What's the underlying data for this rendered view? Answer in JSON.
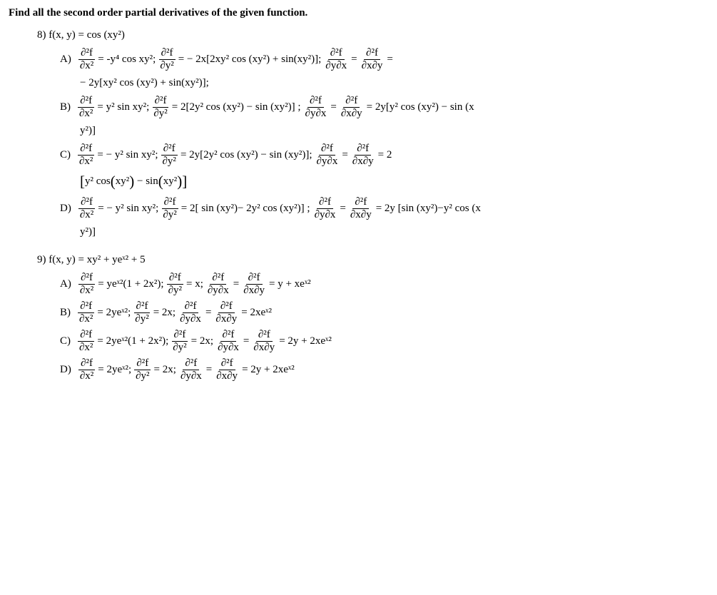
{
  "header": "Find all the second order partial derivatives of the given function.",
  "q8": {
    "number": "8)",
    "function": "f(x, y) = cos (xy²)",
    "A": {
      "label": "A)",
      "p1_rhs": " = -y⁴ cos xy²; ",
      "p2_rhs": " = − 2x[2xy² cos (xy²) + sin(xy²)]; ",
      "cont1": "− 2y[xy² cos (xy²) + sin(xy²)];",
      "mixed_eq": " = "
    },
    "B": {
      "label": "B)",
      "p1_rhs": " = y² sin xy²; ",
      "p2_rhs": " = 2[2y² cos (xy²) − sin (xy²)] ; ",
      "mixed_rhs": " = 2y[y² cos (xy²) − sin (x",
      "cont1": "y²)]"
    },
    "C": {
      "label": "C)",
      "p1_rhs": " = − y² sin xy²; ",
      "p2_rhs": " = 2y[2y² cos (xy²) − sin (xy²)]; ",
      "mixed_rhs": " = 2",
      "cont1": "[y² cos(xy²) − sin(xy²)]"
    },
    "D": {
      "label": "D)",
      "p1_rhs": " = − y² sin xy²; ",
      "p2_rhs": " = 2[ sin (xy²)− 2y² cos (xy²)] ; ",
      "mixed_rhs": " = 2y [sin (xy²)−y² cos (x",
      "cont1": "y²)]"
    }
  },
  "q9": {
    "number": "9)",
    "function": "f(x, y) = xy² + yeˣ² + 5",
    "A": {
      "label": "A)",
      "p1_rhs": " = yeˣ²(1 + 2x²); ",
      "p2_rhs": " =  x; ",
      "mixed_rhs": " =  y + xeˣ²"
    },
    "B": {
      "label": "B)",
      "p1_rhs": " = 2yeˣ²; ",
      "p2_rhs": " =  2x; ",
      "mixed_rhs": " = 2xeˣ²"
    },
    "C": {
      "label": "C)",
      "p1_rhs": " = 2yeˣ²(1 + 2x²); ",
      "p2_rhs": " =  2x; ",
      "mixed_rhs": " =  2y + 2xeˣ²"
    },
    "D": {
      "label": "D)",
      "p1_rhs": " = 2yeˣ²; ",
      "p2_rhs": " =  2x; ",
      "mixed_rhs": " =  2y + 2xeˣ²"
    }
  },
  "partials": {
    "d2f": "∂²f",
    "dx2": "∂x²",
    "dy2": "∂y²",
    "dydx": "∂y∂x",
    "dxdy": "∂x∂y",
    "eq": " = "
  }
}
